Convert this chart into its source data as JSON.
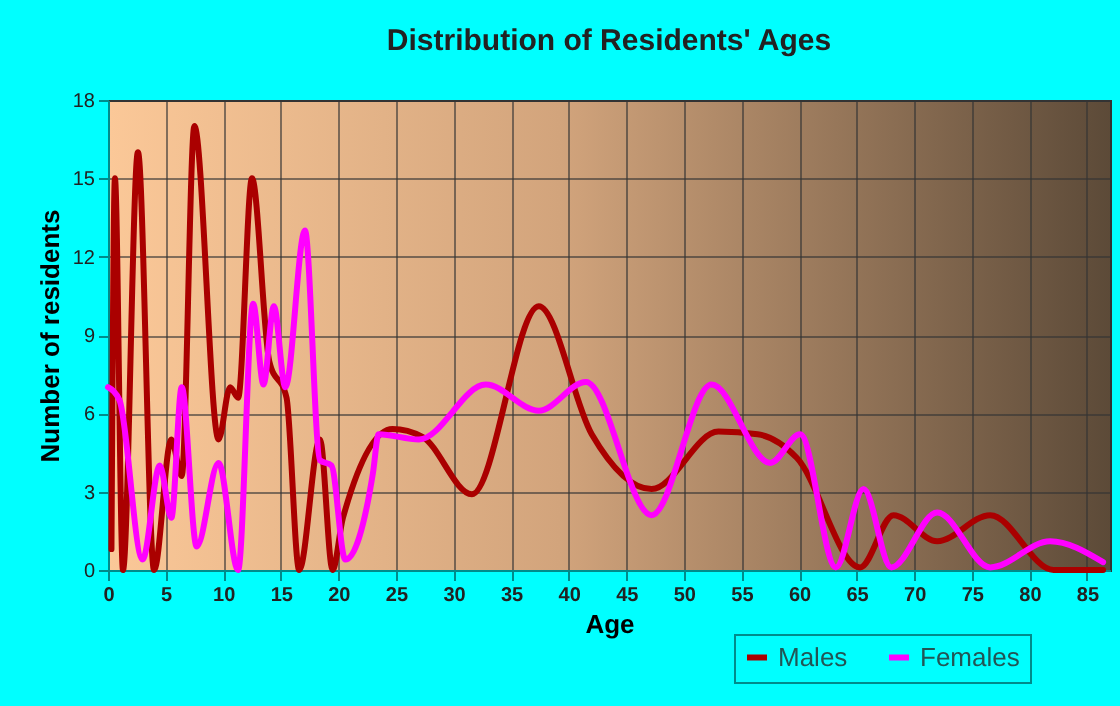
{
  "chart_data": {
    "type": "line",
    "title": "Distribution of Residents' Ages",
    "xlabel": "Age",
    "ylabel": "Number of residents",
    "xlim": [
      0,
      87
    ],
    "xticks": [
      0,
      5,
      10,
      15,
      20,
      25,
      30,
      35,
      40,
      45,
      50,
      55,
      60,
      65,
      70,
      75,
      80,
      85
    ],
    "ylim": [
      0,
      18
    ],
    "yticks": [
      0,
      3,
      6,
      9,
      12,
      15,
      18
    ],
    "grid": true,
    "legend": "bottom right",
    "marker": "none",
    "line_style": "solid",
    "series": [
      {
        "name": "Males",
        "color": "#aa0000",
        "x": [
          0.3,
          0.6,
          1.3,
          2.6,
          4.0,
          5.5,
          6.4,
          7.5,
          9.6,
          10.6,
          11.3,
          12.5,
          14,
          15.5,
          16.6,
          18.4,
          19.5,
          20.4,
          24.7,
          27.3,
          31.6,
          37.4,
          42,
          47.2,
          53,
          56.4,
          59.8,
          65.3,
          68.2,
          72,
          76.6,
          82.1,
          86.4
        ],
        "values": [
          0.8,
          15,
          0,
          16,
          0,
          5,
          3.6,
          17,
          5,
          7,
          6.6,
          15,
          8,
          6.6,
          0,
          5,
          0,
          2,
          5.4,
          5.1,
          2.9,
          10.1,
          5.2,
          3.1,
          5.3,
          5.2,
          4.3,
          0.1,
          2.1,
          1.1,
          2.1,
          0,
          0
        ]
      },
      {
        "name": "Females",
        "color": "#ff00ff",
        "x": [
          0,
          1,
          3,
          4.5,
          5.5,
          6.4,
          7.7,
          9.6,
          11.3,
          12.6,
          13.5,
          14.4,
          15.4,
          17.1,
          18.4,
          19.4,
          20.6,
          23,
          23.5,
          27,
          32.8,
          37.4,
          41.5,
          47.2,
          52.4,
          57.5,
          60.1,
          63.2,
          65.6,
          68,
          72,
          76.6,
          81.8,
          86.4
        ],
        "values": [
          7,
          6.5,
          0.4,
          4,
          2,
          7,
          0.9,
          4.1,
          0,
          10.2,
          7.1,
          10.1,
          7,
          13,
          4.2,
          4,
          0.4,
          3.7,
          5.2,
          5,
          7.1,
          6.1,
          7.2,
          2.1,
          7.1,
          4.1,
          5.2,
          0.1,
          3.1,
          0.1,
          2.2,
          0.1,
          1.1,
          0.3
        ]
      }
    ]
  }
}
